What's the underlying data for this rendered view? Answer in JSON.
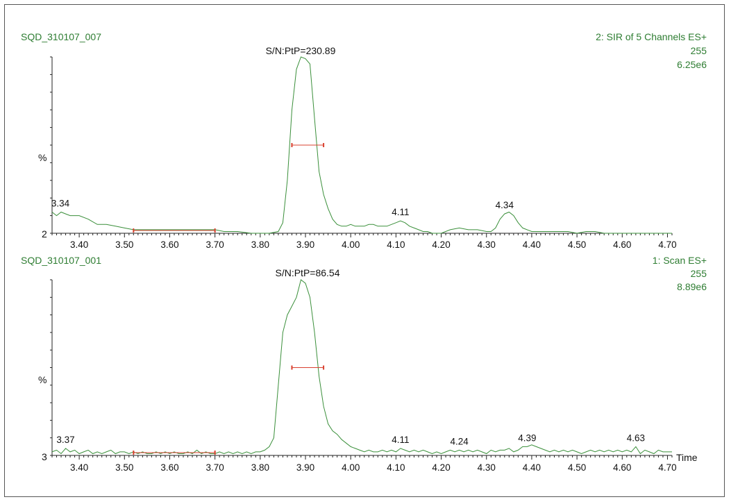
{
  "chart_data": [
    {
      "type": "line",
      "sample_name": "SQD_310107_007",
      "function_label": "2: SIR of 5 Channels ES+",
      "channel": "255",
      "intensity": "6.25e6",
      "ylabel": "%",
      "y_axis_min_label": "2",
      "sn_label": "S/N:PtP=230.89",
      "xlim": [
        3.34,
        4.71
      ],
      "x_ticks": [
        "3.40",
        "3.50",
        "3.60",
        "3.70",
        "3.80",
        "3.90",
        "4.00",
        "4.10",
        "4.20",
        "4.30",
        "4.40",
        "4.50",
        "4.60",
        "4.70"
      ],
      "peak_labels": [
        {
          "x": 3.34,
          "text": "3.34"
        },
        {
          "x": 4.11,
          "text": "4.11"
        },
        {
          "x": 4.34,
          "text": "4.34"
        }
      ],
      "noise_window": [
        3.52,
        3.7
      ],
      "peak_width_marker": [
        3.87,
        3.94,
        50
      ],
      "series": [
        {
          "x": [
            3.34,
            3.35,
            3.36,
            3.37,
            3.38,
            3.4,
            3.42,
            3.44,
            3.46,
            3.48,
            3.5,
            3.52,
            3.55,
            3.58,
            3.6,
            3.62,
            3.65,
            3.68,
            3.7,
            3.72,
            3.75,
            3.78,
            3.8,
            3.82,
            3.84,
            3.85,
            3.86,
            3.87,
            3.88,
            3.89,
            3.9,
            3.91,
            3.92,
            3.93,
            3.94,
            3.95,
            3.96,
            3.97,
            3.98,
            3.99,
            4.0,
            4.01,
            4.02,
            4.03,
            4.04,
            4.05,
            4.06,
            4.07,
            4.08,
            4.09,
            4.1,
            4.11,
            4.12,
            4.13,
            4.14,
            4.15,
            4.16,
            4.17,
            4.18,
            4.2,
            4.22,
            4.24,
            4.26,
            4.28,
            4.3,
            4.31,
            4.32,
            4.33,
            4.34,
            4.35,
            4.36,
            4.37,
            4.38,
            4.4,
            4.42,
            4.44,
            4.46,
            4.48,
            4.5,
            4.52,
            4.54,
            4.56,
            4.58,
            4.6,
            4.62,
            4.64,
            4.66,
            4.68,
            4.7,
            4.71
          ],
          "y": [
            12,
            10,
            12,
            11,
            10,
            10,
            8,
            5,
            5,
            4,
            3,
            2,
            2,
            2,
            2,
            2,
            2,
            2,
            2,
            1,
            1,
            0,
            0,
            0,
            1,
            6,
            30,
            70,
            93,
            100,
            99,
            96,
            65,
            35,
            22,
            14,
            8,
            5,
            4,
            4,
            5,
            4,
            4,
            4,
            5,
            5,
            4,
            4,
            4,
            5,
            6,
            7,
            6,
            4,
            3,
            2,
            1,
            1,
            0,
            0,
            2,
            3,
            2,
            2,
            1,
            1,
            3,
            8,
            11,
            12,
            10,
            6,
            3,
            1,
            1,
            1,
            1,
            1,
            0,
            1,
            1,
            0,
            0,
            0,
            0,
            0,
            0,
            0,
            0,
            0
          ]
        }
      ]
    },
    {
      "type": "line",
      "sample_name": "SQD_310107_001",
      "function_label": "1: Scan ES+",
      "channel": "255",
      "intensity": "8.89e6",
      "ylabel": "%",
      "y_axis_min_label": "3",
      "sn_label": "S/N:PtP=86.54",
      "xlim": [
        3.34,
        4.71
      ],
      "x_ticks": [
        "3.40",
        "3.50",
        "3.60",
        "3.70",
        "3.80",
        "3.90",
        "4.00",
        "4.10",
        "4.20",
        "4.30",
        "4.40",
        "4.50",
        "4.60",
        "4.70"
      ],
      "xlabel": "Time",
      "peak_labels": [
        {
          "x": 3.37,
          "text": "3.37"
        },
        {
          "x": 4.11,
          "text": "4.11"
        },
        {
          "x": 4.24,
          "text": "4.24"
        },
        {
          "x": 4.39,
          "text": "4.39"
        },
        {
          "x": 4.63,
          "text": "4.63"
        }
      ],
      "noise_window": [
        3.52,
        3.7
      ],
      "peak_width_marker": [
        3.87,
        3.94,
        50
      ],
      "series": [
        {
          "x": [
            3.34,
            3.35,
            3.36,
            3.37,
            3.38,
            3.39,
            3.4,
            3.41,
            3.42,
            3.43,
            3.44,
            3.45,
            3.46,
            3.47,
            3.48,
            3.49,
            3.5,
            3.51,
            3.52,
            3.53,
            3.54,
            3.55,
            3.56,
            3.57,
            3.58,
            3.59,
            3.6,
            3.61,
            3.62,
            3.63,
            3.64,
            3.65,
            3.66,
            3.67,
            3.68,
            3.69,
            3.7,
            3.71,
            3.72,
            3.73,
            3.74,
            3.75,
            3.76,
            3.77,
            3.78,
            3.79,
            3.8,
            3.81,
            3.82,
            3.83,
            3.84,
            3.85,
            3.86,
            3.87,
            3.88,
            3.89,
            3.9,
            3.91,
            3.92,
            3.93,
            3.94,
            3.95,
            3.96,
            3.97,
            3.98,
            3.99,
            4.0,
            4.01,
            4.02,
            4.03,
            4.04,
            4.05,
            4.06,
            4.07,
            4.08,
            4.09,
            4.1,
            4.11,
            4.12,
            4.13,
            4.14,
            4.15,
            4.16,
            4.17,
            4.18,
            4.19,
            4.2,
            4.21,
            4.22,
            4.23,
            4.24,
            4.25,
            4.26,
            4.27,
            4.28,
            4.29,
            4.3,
            4.31,
            4.32,
            4.33,
            4.34,
            4.35,
            4.36,
            4.37,
            4.38,
            4.39,
            4.4,
            4.41,
            4.42,
            4.43,
            4.44,
            4.45,
            4.46,
            4.47,
            4.48,
            4.49,
            4.5,
            4.51,
            4.52,
            4.53,
            4.54,
            4.55,
            4.56,
            4.57,
            4.58,
            4.59,
            4.6,
            4.61,
            4.62,
            4.63,
            4.64,
            4.65,
            4.66,
            4.67,
            4.68,
            4.69,
            4.7,
            4.71
          ],
          "y": [
            2,
            3,
            1,
            4,
            2,
            3,
            1,
            2,
            3,
            1,
            2,
            1,
            2,
            3,
            1,
            2,
            2,
            1,
            2,
            1,
            2,
            1,
            1,
            2,
            1,
            2,
            1,
            2,
            1,
            1,
            2,
            1,
            3,
            1,
            2,
            1,
            1,
            2,
            1,
            2,
            1,
            2,
            1,
            2,
            1,
            2,
            2,
            3,
            5,
            10,
            40,
            70,
            80,
            85,
            90,
            100,
            98,
            90,
            70,
            45,
            28,
            18,
            14,
            12,
            9,
            7,
            5,
            4,
            3,
            2,
            3,
            2,
            2,
            3,
            2,
            3,
            2,
            4,
            3,
            2,
            3,
            2,
            3,
            2,
            1,
            2,
            1,
            2,
            3,
            2,
            3,
            2,
            3,
            2,
            3,
            2,
            1,
            3,
            2,
            3,
            3,
            4,
            2,
            3,
            5,
            5,
            6,
            5,
            4,
            3,
            2,
            3,
            2,
            3,
            2,
            3,
            2,
            1,
            2,
            3,
            2,
            3,
            2,
            3,
            2,
            3,
            2,
            3,
            2,
            5,
            1,
            3,
            2,
            1,
            3,
            2,
            2,
            2
          ]
        }
      ]
    }
  ],
  "colors": {
    "trace": "#3a8f3a",
    "green_text": "#2e7d32",
    "marker": "#d9402f",
    "axis": "#222222"
  }
}
